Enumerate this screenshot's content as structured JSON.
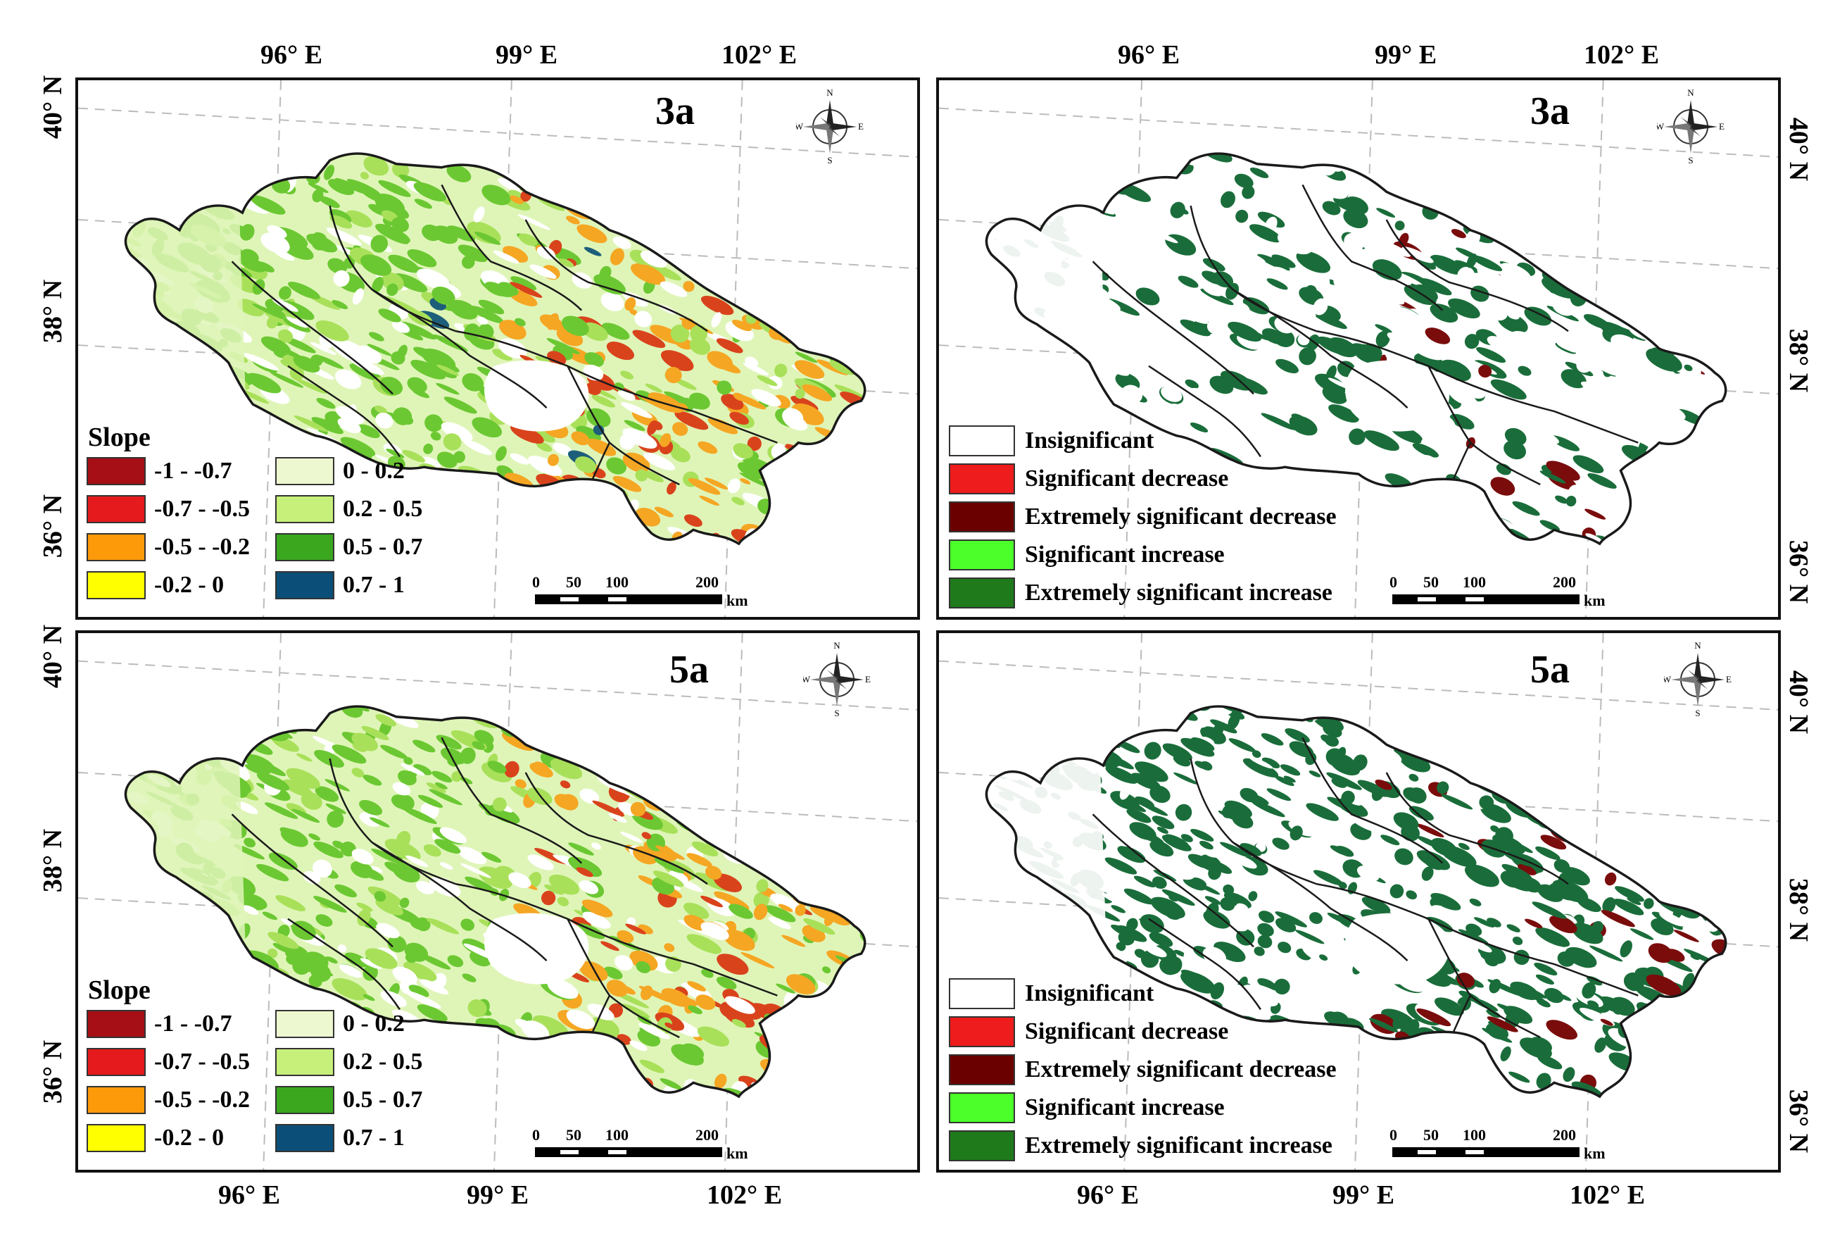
{
  "panels": {
    "tl": {
      "label": "3a",
      "kind": "slope"
    },
    "tr": {
      "label": "3a",
      "kind": "significance"
    },
    "bl": {
      "label": "5a",
      "kind": "slope"
    },
    "br": {
      "label": "5a",
      "kind": "significance"
    }
  },
  "axes": {
    "lon": [
      "96° E",
      "99° E",
      "102° E"
    ],
    "lat_top": [
      "40° N",
      "38° N",
      "36° N"
    ],
    "lat_bottom": [
      "40° N",
      "38° N",
      "36° N"
    ]
  },
  "compass": {
    "n": "N",
    "s": "S",
    "e": "E",
    "w": "W"
  },
  "slope_legend": {
    "title": "Slope",
    "items": [
      {
        "label": "-1 - -0.7",
        "color": "#a50f15"
      },
      {
        "label": "-0.7 - -0.5",
        "color": "#e41a1c"
      },
      {
        "label": "-0.5 - -0.2",
        "color": "#fd9a0a"
      },
      {
        "label": "-0.2 - 0",
        "color": "#ffff00"
      },
      {
        "label": "0 - 0.2",
        "color": "#edf8d0"
      },
      {
        "label": "0.2 - 0.5",
        "color": "#c6f07a"
      },
      {
        "label": "0.5 - 0.7",
        "color": "#3aa71f"
      },
      {
        "label": "0.7 - 1",
        "color": "#0b4f78"
      }
    ]
  },
  "sig_legend": {
    "items": [
      {
        "label": "Insignificant",
        "color": "#ffffff"
      },
      {
        "label": "Significant decrease",
        "color": "#ee1c1c"
      },
      {
        "label": "Extremely significant decrease",
        "color": "#6b0000"
      },
      {
        "label": "Significant increase",
        "color": "#4cff2a"
      },
      {
        "label": "Extremely significant increase",
        "color": "#1f7a1c"
      }
    ]
  },
  "scale": {
    "ticks": [
      "0",
      "50",
      "100",
      "200"
    ],
    "unit": "km"
  },
  "colors": {
    "outline": "#1a1a1a",
    "slope_base": "#dff5b8",
    "slope_green": "#6cc832",
    "slope_red": "#d9431c",
    "slope_orange": "#f5a623",
    "sig_dark_green": "#1a6d3a",
    "sig_dark_red": "#7a0c0c"
  }
}
